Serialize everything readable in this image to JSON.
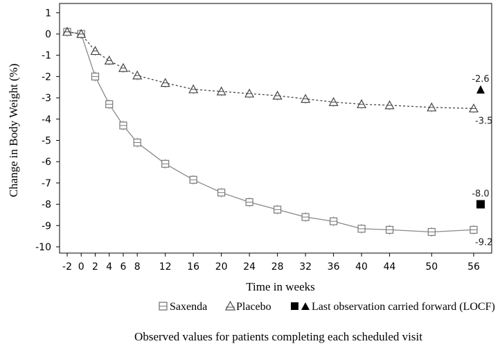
{
  "chart_data": {
    "type": "line",
    "title": "",
    "xlabel": "Time in weeks",
    "ylabel": "Change in Body Weight (%)",
    "x_ticks": [
      -2,
      0,
      2,
      4,
      6,
      8,
      12,
      16,
      20,
      24,
      28,
      32,
      36,
      40,
      44,
      50,
      56
    ],
    "x_tick_labels": [
      "-2",
      "0",
      "2",
      "4",
      "6",
      "8",
      "12",
      "16",
      "20",
      "24",
      "28",
      "32",
      "36",
      "40",
      "44",
      "50",
      "56"
    ],
    "y_ticks": [
      1,
      0,
      -1,
      -2,
      -3,
      -4,
      -5,
      -6,
      -7,
      -8,
      -9,
      -10
    ],
    "y_tick_labels": [
      "1",
      "0",
      "-1",
      "-2",
      "-3",
      "-4",
      "-5",
      "-6",
      "-7",
      "-8",
      "-9",
      "-10"
    ],
    "ylim": [
      -10.3,
      1.2
    ],
    "grid": false,
    "series": [
      {
        "name": "Saxenda",
        "marker": "square-open",
        "line_style": "solid",
        "color": "#888888",
        "points": [
          {
            "x": -2,
            "y": 0.1
          },
          {
            "x": 0,
            "y": 0.0
          },
          {
            "x": 2,
            "y": -2.0
          },
          {
            "x": 4,
            "y": -3.3
          },
          {
            "x": 6,
            "y": -4.3
          },
          {
            "x": 8,
            "y": -5.1
          },
          {
            "x": 12,
            "y": -6.1
          },
          {
            "x": 16,
            "y": -6.85
          },
          {
            "x": 20,
            "y": -7.45
          },
          {
            "x": 24,
            "y": -7.9
          },
          {
            "x": 28,
            "y": -8.25
          },
          {
            "x": 32,
            "y": -8.6
          },
          {
            "x": 36,
            "y": -8.8
          },
          {
            "x": 40,
            "y": -9.15
          },
          {
            "x": 44,
            "y": -9.2
          },
          {
            "x": 50,
            "y": -9.3
          },
          {
            "x": 56,
            "y": -9.2
          }
        ],
        "end_label": "-9.2",
        "locf": {
          "value": -8.0,
          "label": "-8.0",
          "marker": "square-filled"
        }
      },
      {
        "name": "Placebo",
        "marker": "triangle-open",
        "line_style": "dashed",
        "color": "#444444",
        "points": [
          {
            "x": -2,
            "y": 0.1
          },
          {
            "x": 0,
            "y": 0.0
          },
          {
            "x": 2,
            "y": -0.8
          },
          {
            "x": 4,
            "y": -1.25
          },
          {
            "x": 6,
            "y": -1.6
          },
          {
            "x": 8,
            "y": -1.95
          },
          {
            "x": 12,
            "y": -2.3
          },
          {
            "x": 16,
            "y": -2.6
          },
          {
            "x": 20,
            "y": -2.7
          },
          {
            "x": 24,
            "y": -2.8
          },
          {
            "x": 28,
            "y": -2.9
          },
          {
            "x": 32,
            "y": -3.05
          },
          {
            "x": 36,
            "y": -3.2
          },
          {
            "x": 40,
            "y": -3.3
          },
          {
            "x": 44,
            "y": -3.35
          },
          {
            "x": 50,
            "y": -3.45
          },
          {
            "x": 56,
            "y": -3.5
          }
        ],
        "end_label": "-3.5",
        "locf": {
          "value": -2.6,
          "label": "-2.6",
          "marker": "triangle-filled"
        }
      }
    ],
    "legend": {
      "placement": "bottom",
      "items": [
        {
          "label": "Saxenda",
          "symbol": "square-open"
        },
        {
          "label": "Placebo",
          "symbol": "triangle-open"
        },
        {
          "label": "Last observation carried forward (LOCF)",
          "symbol": "filled-square-triangle"
        }
      ]
    },
    "footnote": "Observed values for patients completing each scheduled visit"
  }
}
